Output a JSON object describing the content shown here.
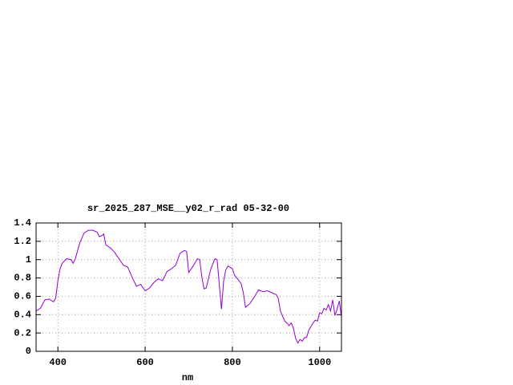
{
  "chart_data": {
    "type": "line",
    "title": "sr_2025_287_MSE__y02_r_rad 05-32-00",
    "x_label": "nm",
    "x": [
      350,
      360,
      370,
      380,
      390,
      395,
      400,
      405,
      410,
      420,
      430,
      435,
      440,
      450,
      460,
      470,
      480,
      490,
      495,
      500,
      505,
      510,
      520,
      530,
      540,
      550,
      560,
      570,
      580,
      590,
      600,
      610,
      620,
      630,
      640,
      650,
      660,
      670,
      680,
      690,
      695,
      700,
      710,
      720,
      725,
      730,
      735,
      740,
      750,
      760,
      765,
      770,
      775,
      780,
      785,
      790,
      800,
      805,
      810,
      820,
      825,
      830,
      840,
      850,
      860,
      870,
      880,
      890,
      900,
      905,
      910,
      920,
      925,
      930,
      935,
      940,
      945,
      950,
      955,
      960,
      965,
      970,
      975,
      980,
      985,
      990,
      995,
      1000,
      1005,
      1010,
      1015,
      1020,
      1025,
      1030,
      1035,
      1040,
      1045,
      1050
    ],
    "series": [
      {
        "color": "#9400d3",
        "values": [
          0.44,
          0.47,
          0.56,
          0.57,
          0.54,
          0.58,
          0.77,
          0.9,
          0.96,
          1.01,
          1.0,
          0.96,
          1.01,
          1.18,
          1.29,
          1.32,
          1.32,
          1.3,
          1.25,
          1.26,
          1.28,
          1.16,
          1.13,
          1.08,
          1.01,
          0.94,
          0.92,
          0.81,
          0.71,
          0.73,
          0.66,
          0.69,
          0.75,
          0.79,
          0.77,
          0.87,
          0.9,
          0.94,
          1.07,
          1.1,
          1.09,
          0.86,
          0.93,
          1.01,
          1.0,
          0.81,
          0.68,
          0.69,
          0.89,
          1.01,
          1.0,
          0.73,
          0.46,
          0.77,
          0.89,
          0.93,
          0.9,
          0.83,
          0.8,
          0.74,
          0.64,
          0.48,
          0.52,
          0.59,
          0.67,
          0.65,
          0.66,
          0.64,
          0.62,
          0.58,
          0.44,
          0.33,
          0.31,
          0.28,
          0.31,
          0.25,
          0.14,
          0.09,
          0.13,
          0.11,
          0.15,
          0.15,
          0.23,
          0.27,
          0.31,
          0.34,
          0.33,
          0.42,
          0.41,
          0.47,
          0.45,
          0.51,
          0.44,
          0.56,
          0.39,
          0.46,
          0.55,
          0.37
        ]
      }
    ],
    "xlim": [
      350,
      1050
    ],
    "xticks": [
      400,
      600,
      800,
      1000
    ],
    "ylim": [
      0,
      1.4
    ],
    "yticks": [
      0,
      0.2,
      0.4,
      0.6,
      0.8,
      1,
      1.2,
      1.4
    ],
    "grid": true
  }
}
